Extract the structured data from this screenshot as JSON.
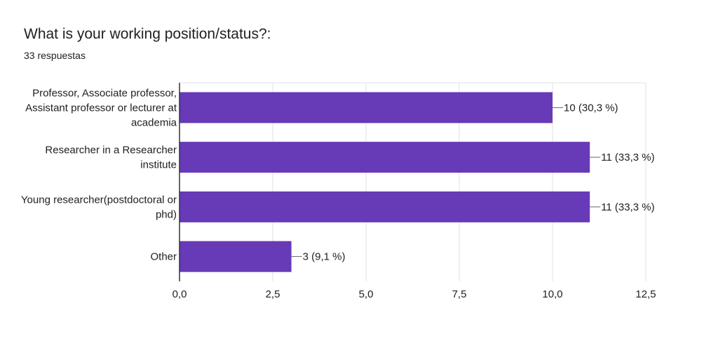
{
  "title": "What is your working position/status?:",
  "subtitle": "33 respuestas",
  "chart_data": {
    "type": "bar",
    "orientation": "horizontal",
    "categories": [
      [
        "Professor, Associate professor,",
        "Assistant professor or lecturer at",
        "academia"
      ],
      [
        "Researcher in a Researcher",
        "institute"
      ],
      [
        "Young researcher(postdoctoral or",
        "phd)"
      ],
      [
        "Other"
      ]
    ],
    "values": [
      10,
      11,
      11,
      3
    ],
    "data_labels": [
      "10 (30,3 %)",
      "11 (33,3 %)",
      "11 (33,3 %)",
      "3 (9,1 %)"
    ],
    "xlim": [
      0,
      12.5
    ],
    "xticks": [
      0,
      2.5,
      5,
      7.5,
      10,
      12.5
    ],
    "xtick_labels": [
      "0,0",
      "2,5",
      "5,0",
      "7,5",
      "10,0",
      "12,5"
    ],
    "grid": true,
    "bar_color": "#673ab7",
    "grid_color": "#e0e0e0",
    "axis_color": "#333333"
  }
}
